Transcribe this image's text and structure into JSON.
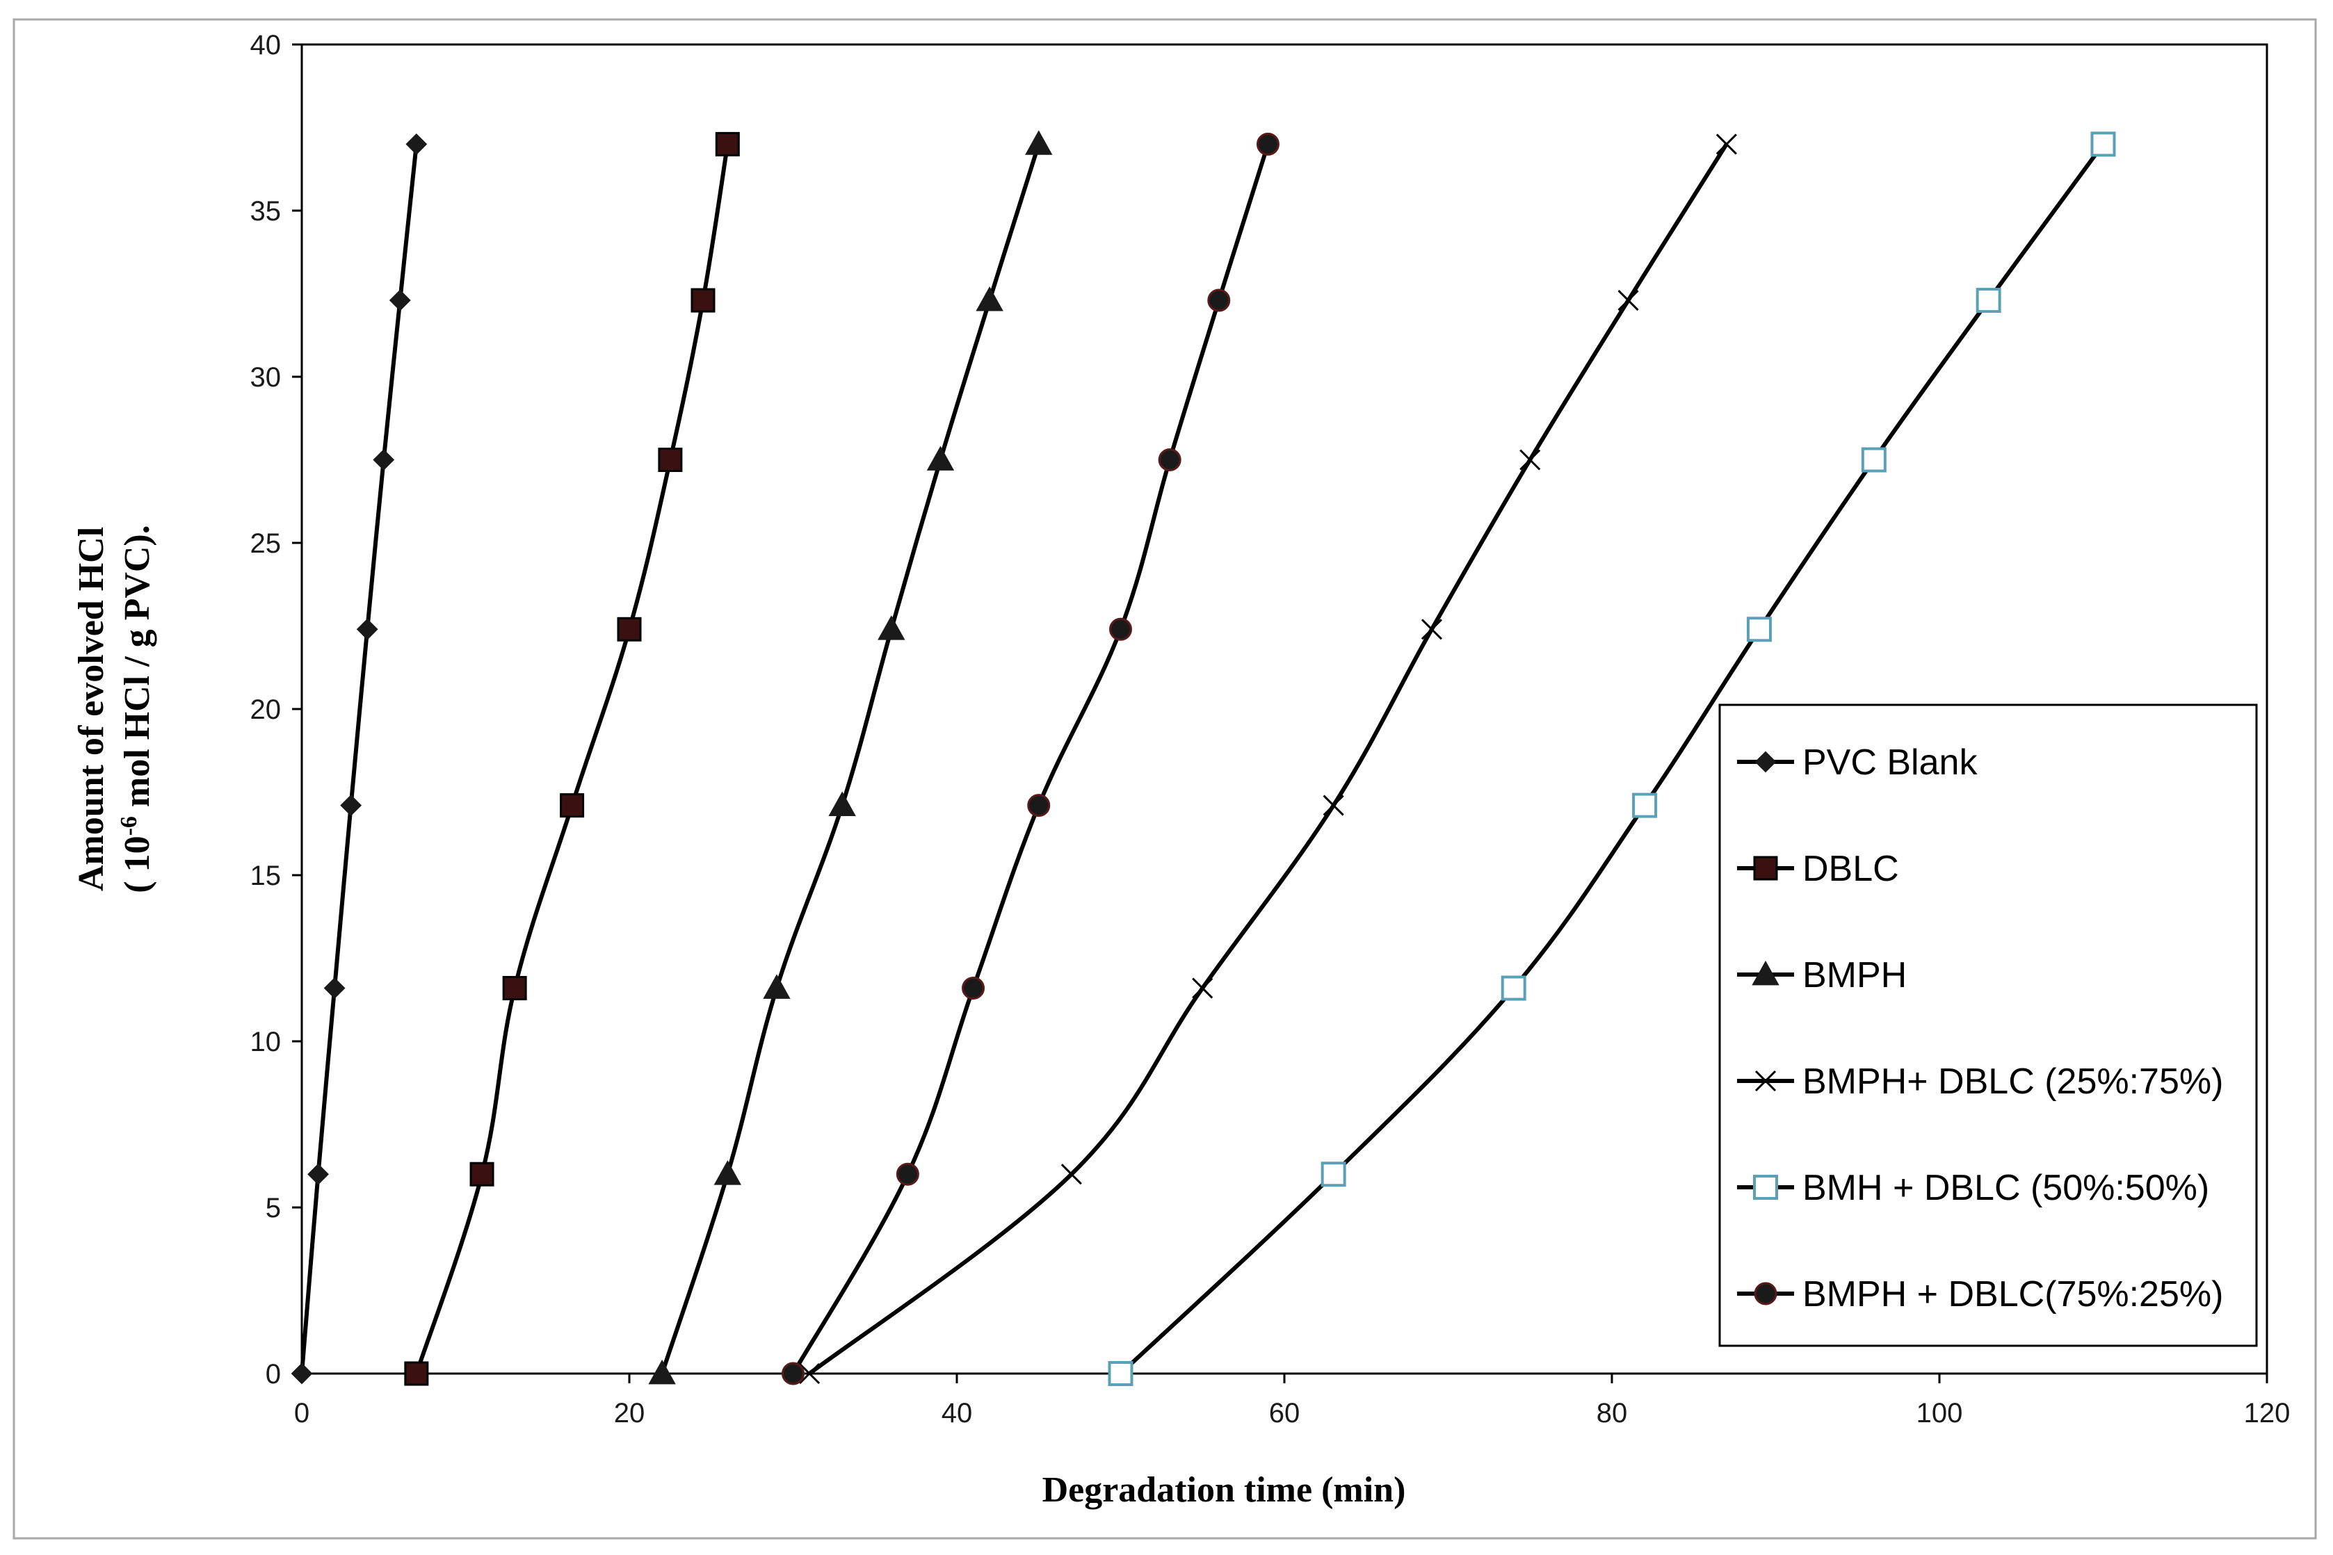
{
  "chart_data": {
    "type": "line",
    "title": "",
    "xlabel": "Degradation time (min)",
    "ylabel_line1": "Amount of evolved HCl",
    "ylabel_line2_prefix": "( 10",
    "ylabel_line2_sup": "-6",
    "ylabel_line2_suffix": " mol HCl / g PVC).",
    "xlim": [
      0,
      120
    ],
    "ylim": [
      0,
      40
    ],
    "x_ticks": [
      0,
      20,
      40,
      60,
      80,
      100,
      120
    ],
    "y_ticks": [
      0,
      5,
      10,
      15,
      20,
      25,
      30,
      35,
      40
    ],
    "grid": false,
    "legend_position": "right",
    "series": [
      {
        "name": "PVC Blank",
        "marker": "diamond",
        "x": [
          0,
          1,
          2,
          3,
          4,
          5,
          6,
          7
        ],
        "y": [
          0,
          6,
          11.6,
          17.1,
          22.4,
          27.5,
          32.3,
          37
        ]
      },
      {
        "name": "DBLC",
        "marker": "square",
        "x": [
          7,
          11,
          13,
          16.5,
          20,
          22.5,
          24.5,
          26
        ],
        "y": [
          0,
          6,
          11.6,
          17.1,
          22.4,
          27.5,
          32.3,
          37
        ]
      },
      {
        "name": "BMPH",
        "marker": "triangle",
        "x": [
          22,
          26,
          29,
          33,
          36,
          39,
          42,
          45
        ],
        "y": [
          0,
          6,
          11.6,
          17.1,
          22.4,
          27.5,
          32.3,
          37
        ]
      },
      {
        "name": "BMPH+ DBLC (25%:75%)",
        "marker": "x",
        "x": [
          31,
          47,
          55,
          63,
          69,
          75,
          81,
          87
        ],
        "y": [
          0,
          6,
          11.6,
          17.1,
          22.4,
          27.5,
          32.3,
          37
        ]
      },
      {
        "name": "BMH + DBLC (50%:50%)",
        "marker": "open-square",
        "x": [
          50,
          63,
          74,
          82,
          89,
          96,
          103,
          110
        ],
        "y": [
          0,
          6,
          11.6,
          17.1,
          22.4,
          27.5,
          32.3,
          37
        ]
      },
      {
        "name": "BMPH + DBLC(75%:25%)",
        "marker": "circle",
        "x": [
          30,
          37,
          41,
          45,
          50,
          53,
          56,
          59
        ],
        "y": [
          0,
          6,
          11.6,
          17.1,
          22.4,
          27.5,
          32.3,
          37
        ]
      }
    ],
    "colors": {
      "line": "#000000",
      "marker_fill": "#1a1a1a",
      "square_fill": "#3a1010",
      "open_square_stroke": "#5aa0b8",
      "open_square_fill": "#ffffff"
    }
  }
}
